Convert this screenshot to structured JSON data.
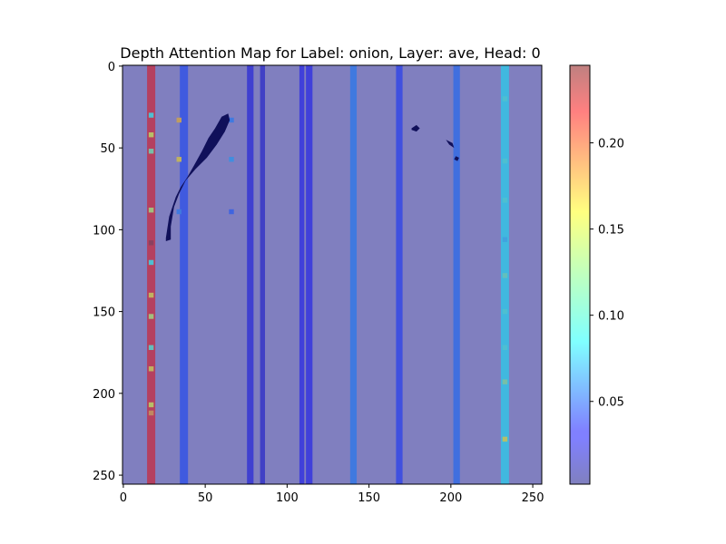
{
  "chart_data": {
    "type": "heatmap",
    "title": "Depth Attention Map for Label: onion, Layer: ave, Head: 0",
    "xlabel": "",
    "ylabel": "",
    "xlim": [
      0,
      255
    ],
    "ylim": [
      255,
      0
    ],
    "x_ticks": [
      0,
      50,
      100,
      150,
      200,
      250
    ],
    "y_ticks": [
      0,
      50,
      100,
      150,
      200,
      250
    ],
    "colormap": "jet",
    "overlay_alpha": 0.5,
    "background_color": "#807fbf",
    "colorbar": {
      "range": [
        0.002,
        0.245
      ],
      "ticks": [
        0.05,
        0.1,
        0.15,
        0.2
      ],
      "tick_labels": [
        "0.05",
        "0.10",
        "0.15",
        "0.20"
      ]
    },
    "column_bands": [
      {
        "x": [
          15,
          19
        ],
        "value": 0.22
      },
      {
        "x": [
          35,
          39
        ],
        "value": 0.045
      },
      {
        "x": [
          76,
          79
        ],
        "value": 0.025
      },
      {
        "x": [
          84,
          86
        ],
        "value": 0.02
      },
      {
        "x": [
          108,
          110
        ],
        "value": 0.03
      },
      {
        "x": [
          112,
          115
        ],
        "value": 0.03
      },
      {
        "x": [
          139,
          142
        ],
        "value": 0.06
      },
      {
        "x": [
          167,
          170
        ],
        "value": 0.04
      },
      {
        "x": [
          202,
          205
        ],
        "value": 0.055
      },
      {
        "x": [
          231,
          235
        ],
        "value": 0.09
      }
    ],
    "hot_cells": [
      {
        "x": 17,
        "y": 30,
        "value": 0.1
      },
      {
        "x": 17,
        "y": 42,
        "value": 0.15
      },
      {
        "x": 17,
        "y": 52,
        "value": 0.12
      },
      {
        "x": 17,
        "y": 88,
        "value": 0.14
      },
      {
        "x": 17,
        "y": 108,
        "value": 0.24
      },
      {
        "x": 17,
        "y": 120,
        "value": 0.1
      },
      {
        "x": 17,
        "y": 140,
        "value": 0.16
      },
      {
        "x": 17,
        "y": 153,
        "value": 0.14
      },
      {
        "x": 17,
        "y": 172,
        "value": 0.11
      },
      {
        "x": 17,
        "y": 185,
        "value": 0.16
      },
      {
        "x": 17,
        "y": 207,
        "value": 0.15
      },
      {
        "x": 17,
        "y": 212,
        "value": 0.18
      },
      {
        "x": 34,
        "y": 33,
        "value": 0.17
      },
      {
        "x": 34,
        "y": 57,
        "value": 0.16
      },
      {
        "x": 34,
        "y": 89,
        "value": 0.06
      },
      {
        "x": 66,
        "y": 33,
        "value": 0.06
      },
      {
        "x": 66,
        "y": 57,
        "value": 0.07
      },
      {
        "x": 66,
        "y": 89,
        "value": 0.05
      },
      {
        "x": 233,
        "y": 20,
        "value": 0.1
      },
      {
        "x": 233,
        "y": 58,
        "value": 0.1
      },
      {
        "x": 233,
        "y": 82,
        "value": 0.1
      },
      {
        "x": 233,
        "y": 106,
        "value": 0.08
      },
      {
        "x": 233,
        "y": 128,
        "value": 0.11
      },
      {
        "x": 233,
        "y": 150,
        "value": 0.1
      },
      {
        "x": 233,
        "y": 172,
        "value": 0.1
      },
      {
        "x": 233,
        "y": 193,
        "value": 0.12
      },
      {
        "x": 233,
        "y": 228,
        "value": 0.15
      }
    ],
    "dark_regions": [
      {
        "points": [
          [
            26,
            105
          ],
          [
            28,
            92
          ],
          [
            30,
            86
          ],
          [
            32,
            80
          ],
          [
            35,
            74
          ],
          [
            39,
            68
          ],
          [
            43,
            61
          ],
          [
            48,
            52
          ],
          [
            52,
            44
          ],
          [
            56,
            38
          ],
          [
            60,
            31
          ],
          [
            64,
            29
          ],
          [
            65,
            33
          ],
          [
            62,
            40
          ],
          [
            57,
            48
          ],
          [
            51,
            56
          ],
          [
            44,
            63
          ],
          [
            38,
            70
          ],
          [
            34,
            78
          ],
          [
            31,
            86
          ],
          [
            29,
            98
          ],
          [
            29,
            106
          ],
          [
            26,
            107
          ]
        ]
      },
      {
        "points": [
          [
            176,
            38
          ],
          [
            179,
            36
          ],
          [
            181,
            38
          ],
          [
            179,
            40
          ],
          [
            176,
            39
          ]
        ]
      },
      {
        "points": [
          [
            197,
            45
          ],
          [
            201,
            47
          ],
          [
            202,
            50
          ],
          [
            199,
            48
          ]
        ]
      },
      {
        "points": [
          [
            203,
            55
          ],
          [
            205,
            56
          ],
          [
            204,
            58
          ],
          [
            202,
            57
          ]
        ]
      }
    ]
  }
}
